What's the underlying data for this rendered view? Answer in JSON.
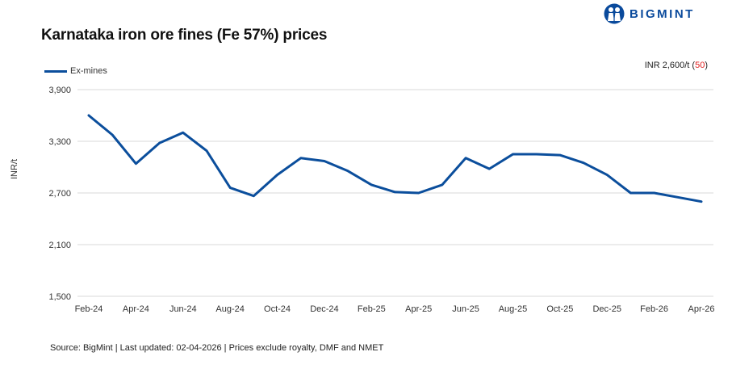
{
  "header": {
    "title": "Karnataka iron ore fines (Fe 57%) prices",
    "brand": "BIGMINT",
    "brand_color": "#0a4a9c"
  },
  "legend": {
    "items": [
      {
        "label": "Ex-mines",
        "color": "#0b4e9c"
      }
    ]
  },
  "price_note": {
    "prefix": "INR 2,600/t (",
    "change": "50",
    "suffix": ")",
    "change_color": "#e02020"
  },
  "footer": {
    "source": "Source: BigMint | Last updated: 02-04-2026 | Prices exclude royalty, DMF and NMET"
  },
  "chart_data": {
    "type": "line",
    "title": "Karnataka iron ore fines (Fe 57%) prices",
    "xlabel": "",
    "ylabel": "INR/t",
    "ylim": [
      1500,
      3900
    ],
    "yticks": [
      "3,900",
      "3,300",
      "2,700",
      "2,100",
      "1,500"
    ],
    "ytick_values": [
      3900,
      3300,
      2700,
      2100,
      1500
    ],
    "xtick_labels": [
      "Feb-24",
      "Apr-24",
      "Jun-24",
      "Aug-24",
      "Oct-24",
      "Dec-24",
      "Feb-25",
      "Apr-25",
      "Jun-25",
      "Aug-25",
      "Oct-25",
      "Dec-25",
      "Feb-26",
      "Apr-26"
    ],
    "grid": true,
    "legend_position": "top-left",
    "categories": [
      "Feb-24",
      "Mar-24",
      "Apr-24",
      "May-24",
      "Jun-24",
      "Jul-24",
      "Aug-24",
      "Sep-24",
      "Oct-24",
      "Nov-24",
      "Dec-24",
      "Jan-25",
      "Feb-25",
      "Mar-25",
      "Apr-25",
      "May-25",
      "Jun-25",
      "Jul-25",
      "Aug-25",
      "Sep-25",
      "Oct-25",
      "Nov-25",
      "Dec-25",
      "Jan-26",
      "Feb-26",
      "Mar-26",
      "Apr-26"
    ],
    "series": [
      {
        "name": "Ex-mines",
        "color": "#0b4e9c",
        "values": [
          3600,
          3375,
          3040,
          3280,
          3400,
          3190,
          2760,
          2665,
          2910,
          3105,
          3070,
          2955,
          2795,
          2710,
          2700,
          2795,
          3105,
          2980,
          3150,
          3150,
          3140,
          3050,
          2910,
          2700,
          2700,
          2650,
          2600
        ]
      }
    ]
  }
}
